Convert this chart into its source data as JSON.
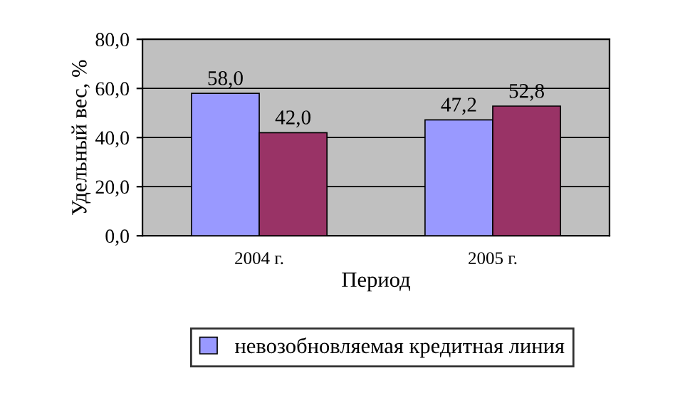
{
  "chart_data": {
    "type": "bar",
    "xlabel": "Период",
    "ylabel": "Удельный вес, %",
    "categories": [
      "2004 г.",
      "2005 г."
    ],
    "series": [
      {
        "name": "невозобновляемая кредитная линия",
        "color": "#9999ff",
        "values": [
          58.0,
          47.2
        ],
        "value_labels": [
          "58,0",
          "47,2"
        ]
      },
      {
        "color": "#993366",
        "values": [
          42.0,
          52.8
        ],
        "value_labels": [
          "42,0",
          "52,8"
        ]
      }
    ],
    "ylim": [
      0,
      80
    ],
    "yticks": [
      {
        "value": 0,
        "label": "0,0"
      },
      {
        "value": 20,
        "label": "20,0"
      },
      {
        "value": 40,
        "label": "40,0"
      },
      {
        "value": 60,
        "label": "60,0"
      },
      {
        "value": 80,
        "label": "80,0"
      }
    ],
    "grid": "y",
    "legend": "bottom"
  }
}
